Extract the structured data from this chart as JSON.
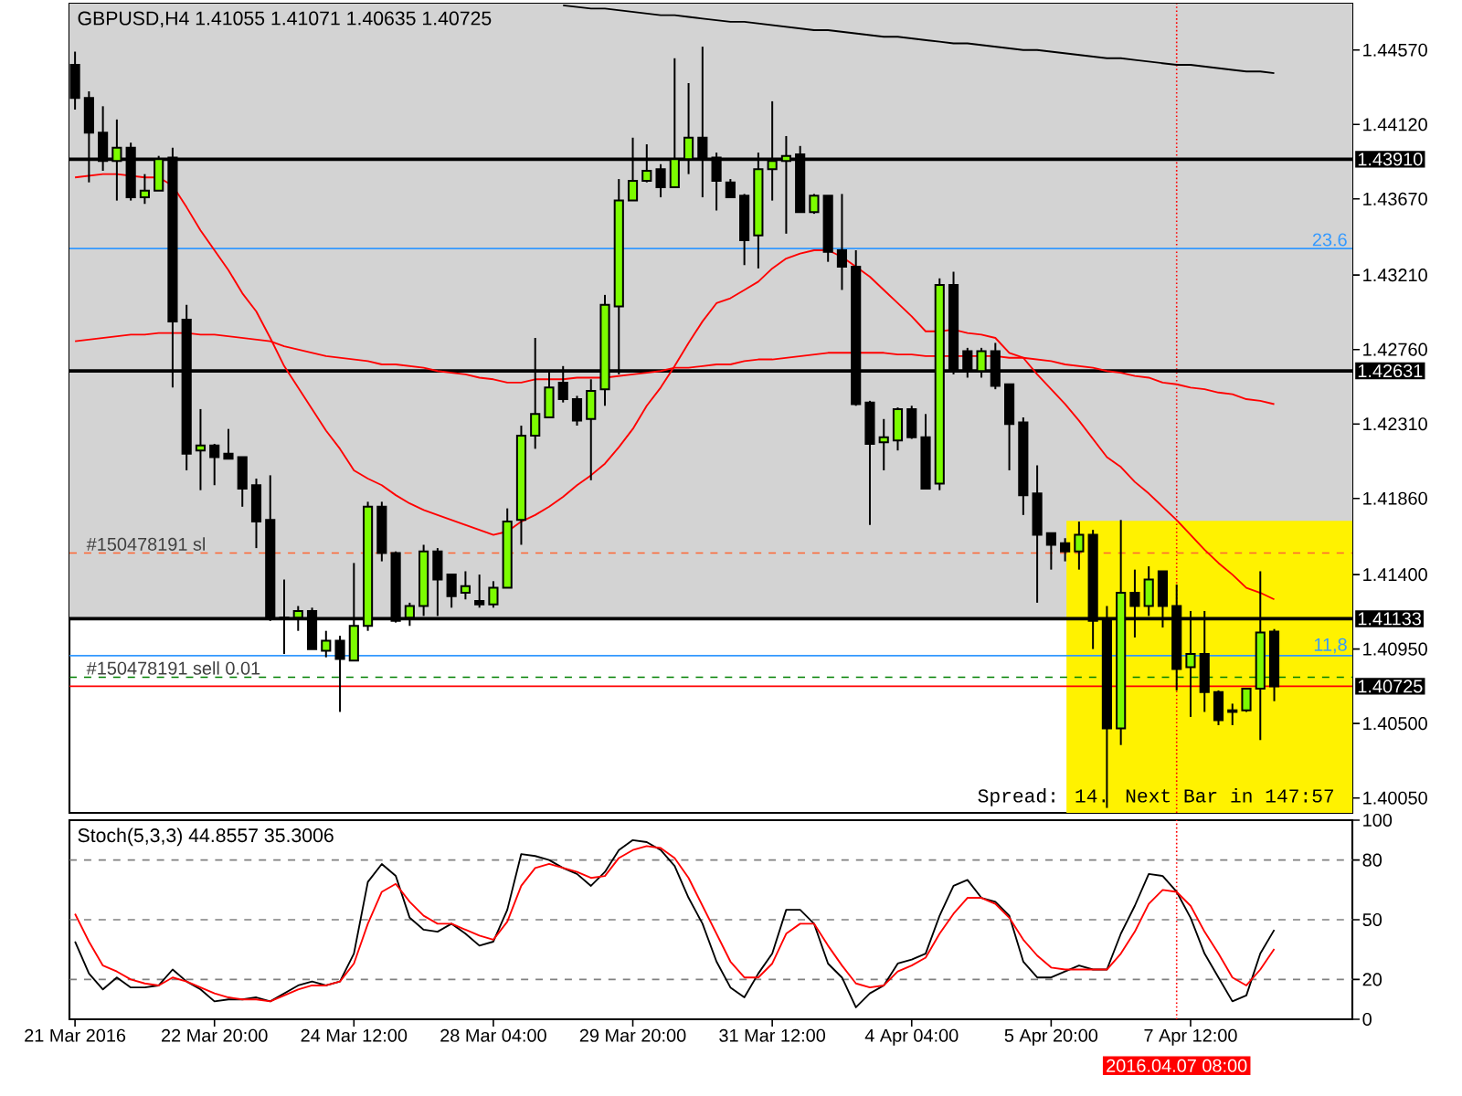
{
  "chart_data": [
    {
      "type": "candlestick",
      "title": "GBPUSD,H4 1.41055 1.41071 1.40635 1.40725",
      "tick_labels": "y",
      "ohlc": [
        [
          1.4448,
          1.4456,
          1.4421,
          1.4428
        ],
        [
          1.4428,
          1.4432,
          1.4377,
          1.4407
        ],
        [
          1.4407,
          1.4423,
          1.4384,
          1.439
        ],
        [
          1.439,
          1.4415,
          1.4366,
          1.4398
        ],
        [
          1.4398,
          1.4401,
          1.4366,
          1.4368
        ],
        [
          1.4368,
          1.4382,
          1.4364,
          1.4372
        ],
        [
          1.4372,
          1.4393,
          1.4372,
          1.4391
        ],
        [
          1.4392,
          1.4398,
          1.4253,
          1.4293
        ],
        [
          1.4294,
          1.4303,
          1.4203,
          1.4213
        ],
        [
          1.4215,
          1.424,
          1.4191,
          1.4218
        ],
        [
          1.4218,
          1.4219,
          1.4194,
          1.4211
        ],
        [
          1.4213,
          1.4228,
          1.421,
          1.421
        ],
        [
          1.4211,
          1.4211,
          1.4181,
          1.4192
        ],
        [
          1.4194,
          1.4198,
          1.4156,
          1.4172
        ],
        [
          1.4173,
          1.42,
          1.4112,
          1.4114
        ],
        [
          1.4114,
          1.4137,
          1.4092,
          1.4113
        ],
        [
          1.4114,
          1.4121,
          1.4106,
          1.4118
        ],
        [
          1.4118,
          1.412,
          1.4095,
          1.4095
        ],
        [
          1.4094,
          1.4106,
          1.409,
          1.41
        ],
        [
          1.41,
          1.4103,
          1.4057,
          1.4089
        ],
        [
          1.4088,
          1.4147,
          1.4088,
          1.4109
        ],
        [
          1.4109,
          1.4184,
          1.4106,
          1.4181
        ],
        [
          1.4181,
          1.4184,
          1.4148,
          1.4153
        ],
        [
          1.4153,
          1.4154,
          1.4111,
          1.4112
        ],
        [
          1.4114,
          1.4123,
          1.4109,
          1.4121
        ],
        [
          1.4121,
          1.4158,
          1.4115,
          1.4154
        ],
        [
          1.4154,
          1.4156,
          1.4115,
          1.4137
        ],
        [
          1.414,
          1.414,
          1.412,
          1.4127
        ],
        [
          1.4129,
          1.4142,
          1.4125,
          1.4133
        ],
        [
          1.4124,
          1.414,
          1.412,
          1.4122
        ],
        [
          1.4122,
          1.4136,
          1.412,
          1.4132
        ],
        [
          1.4132,
          1.418,
          1.4132,
          1.4172
        ],
        [
          1.4173,
          1.423,
          1.4158,
          1.4224
        ],
        [
          1.4224,
          1.4283,
          1.4216,
          1.4237
        ],
        [
          1.4235,
          1.4263,
          1.4235,
          1.4253
        ],
        [
          1.4256,
          1.4266,
          1.4244,
          1.4246
        ],
        [
          1.4246,
          1.4248,
          1.423,
          1.4233
        ],
        [
          1.4234,
          1.4258,
          1.4197,
          1.4251
        ],
        [
          1.4252,
          1.4309,
          1.4242,
          1.4303
        ],
        [
          1.4302,
          1.4379,
          1.4261,
          1.4366
        ],
        [
          1.4366,
          1.4404,
          1.4366,
          1.4378
        ],
        [
          1.4378,
          1.44,
          1.4377,
          1.4384
        ],
        [
          1.4385,
          1.4388,
          1.4368,
          1.4374
        ],
        [
          1.4374,
          1.4452,
          1.4374,
          1.4391
        ],
        [
          1.4391,
          1.4437,
          1.4382,
          1.4404
        ],
        [
          1.4404,
          1.4459,
          1.4368,
          1.4392
        ],
        [
          1.4392,
          1.4395,
          1.436,
          1.4378
        ],
        [
          1.4377,
          1.4379,
          1.4368,
          1.4368
        ],
        [
          1.4369,
          1.437,
          1.4327,
          1.4342
        ],
        [
          1.4345,
          1.4395,
          1.4325,
          1.4385
        ],
        [
          1.4385,
          1.4426,
          1.4366,
          1.439
        ],
        [
          1.439,
          1.4405,
          1.4346,
          1.4393
        ],
        [
          1.4394,
          1.4399,
          1.4359,
          1.4359
        ],
        [
          1.4359,
          1.437,
          1.4358,
          1.4369
        ],
        [
          1.4369,
          1.4369,
          1.4329,
          1.4335
        ],
        [
          1.4336,
          1.437,
          1.4312,
          1.4326
        ],
        [
          1.4326,
          1.4336,
          1.4242,
          1.4243
        ],
        [
          1.4244,
          1.4245,
          1.417,
          1.4219
        ],
        [
          1.422,
          1.4234,
          1.4203,
          1.4223
        ],
        [
          1.4221,
          1.4241,
          1.4215,
          1.424
        ],
        [
          1.424,
          1.4242,
          1.4222,
          1.4223
        ],
        [
          1.4223,
          1.4237,
          1.4192,
          1.4192
        ],
        [
          1.4195,
          1.4319,
          1.4191,
          1.4315
        ],
        [
          1.4315,
          1.4323,
          1.4261,
          1.4263
        ],
        [
          1.4275,
          1.4277,
          1.4259,
          1.4263
        ],
        [
          1.4263,
          1.4277,
          1.4259,
          1.4275
        ],
        [
          1.4275,
          1.428,
          1.4252,
          1.4254
        ],
        [
          1.4255,
          1.4255,
          1.4203,
          1.4231
        ],
        [
          1.4232,
          1.4235,
          1.4176,
          1.4188
        ],
        [
          1.4189,
          1.4206,
          1.4123,
          1.4164
        ],
        [
          1.4165,
          1.4165,
          1.4143,
          1.4158
        ],
        [
          1.4159,
          1.4162,
          1.4148,
          1.4154
        ],
        [
          1.4154,
          1.4172,
          1.4143,
          1.4164
        ],
        [
          1.4164,
          1.4167,
          1.4095,
          1.4112
        ],
        [
          1.4112,
          1.4121,
          1.3999,
          1.4047
        ],
        [
          1.4047,
          1.4173,
          1.4037,
          1.4129
        ],
        [
          1.4129,
          1.4143,
          1.4102,
          1.4121
        ],
        [
          1.4121,
          1.4145,
          1.4115,
          1.4137
        ],
        [
          1.4142,
          1.4142,
          1.4108,
          1.4121
        ],
        [
          1.4121,
          1.4134,
          1.407,
          1.4083
        ],
        [
          1.4084,
          1.4118,
          1.4054,
          1.4092
        ],
        [
          1.4092,
          1.4118,
          1.4057,
          1.4069
        ],
        [
          1.4069,
          1.407,
          1.4049,
          1.4052
        ],
        [
          1.4058,
          1.4062,
          1.4049,
          1.4057
        ],
        [
          1.4058,
          1.4071,
          1.4057,
          1.4071
        ],
        [
          1.4071,
          1.4142,
          1.404,
          1.4105
        ],
        [
          1.41055,
          1.41071,
          1.40635,
          1.40725
        ]
      ],
      "colors": [
        "#000000",
        "#000000",
        "#000000",
        "#7cfc00",
        "#000000",
        "#7cfc00",
        "#7cfc00",
        "#000000",
        "#000000",
        "#7cfc00",
        "#000000",
        "#000000",
        "#000000",
        "#000000",
        "#000000",
        "#000000",
        "#7cfc00",
        "#000000",
        "#7cfc00",
        "#000000",
        "#7cfc00",
        "#7cfc00",
        "#000000",
        "#000000",
        "#7cfc00",
        "#7cfc00",
        "#000000",
        "#000000",
        "#7cfc00",
        "#000000",
        "#7cfc00",
        "#7cfc00",
        "#7cfc00",
        "#7cfc00",
        "#7cfc00",
        "#000000",
        "#000000",
        "#7cfc00",
        "#7cfc00",
        "#7cfc00",
        "#7cfc00",
        "#7cfc00",
        "#000000",
        "#7cfc00",
        "#7cfc00",
        "#000000",
        "#000000",
        "#000000",
        "#000000",
        "#7cfc00",
        "#7cfc00",
        "#7cfc00",
        "#000000",
        "#7cfc00",
        "#000000",
        "#000000",
        "#000000",
        "#000000",
        "#7cfc00",
        "#7cfc00",
        "#000000",
        "#000000",
        "#7cfc00",
        "#000000",
        "#000000",
        "#7cfc00",
        "#000000",
        "#000000",
        "#000000",
        "#000000",
        "#000000",
        "#000000",
        "#7cfc00",
        "#000000",
        "#000000",
        "#7cfc00",
        "#000000",
        "#7cfc00",
        "#000000",
        "#000000",
        "#7cfc00",
        "#000000",
        "#000000",
        "#000000",
        "#7cfc00",
        "#7cfc00",
        "#000000"
      ],
      "series": [
        {
          "type": "line",
          "color": "#ff0000",
          "values": [
            1.438,
            1.4381,
            1.4382,
            1.4382,
            1.4381,
            1.438,
            1.438,
            1.4375,
            1.4362,
            1.4348,
            1.4336,
            1.4324,
            1.431,
            1.4299,
            1.4283,
            1.4266,
            1.4253,
            1.424,
            1.4227,
            1.4216,
            1.4203,
            1.4198,
            1.4194,
            1.4188,
            1.4183,
            1.4179,
            1.4176,
            1.4173,
            1.417,
            1.4167,
            1.4164,
            1.4166,
            1.4172,
            1.4176,
            1.4181,
            1.4187,
            1.4194,
            1.42,
            1.4207,
            1.4217,
            1.4228,
            1.4242,
            1.4253,
            1.4266,
            1.428,
            1.4293,
            1.4304,
            1.4307,
            1.4312,
            1.4317,
            1.4325,
            1.4331,
            1.4334,
            1.4336,
            1.4336,
            1.4332,
            1.4326,
            1.432,
            1.4312,
            1.4304,
            1.4296,
            1.4287,
            1.4287,
            1.4288,
            1.4286,
            1.4285,
            1.4283,
            1.4274,
            1.4271,
            1.4261,
            1.4252,
            1.4243,
            1.4233,
            1.4222,
            1.4211,
            1.4205,
            1.4196,
            1.4189,
            1.4181,
            1.4173,
            1.4164,
            1.4155,
            1.4147,
            1.414,
            1.4132,
            1.4129,
            1.4125
          ]
        },
        {
          "type": "line",
          "color": "#ff0000",
          "values": [
            1.4281,
            1.4282,
            1.4283,
            1.4284,
            1.4285,
            1.4285,
            1.4286,
            1.4286,
            1.4286,
            1.4285,
            1.4285,
            1.4284,
            1.4283,
            1.4282,
            1.4281,
            1.4278,
            1.4276,
            1.4274,
            1.4272,
            1.4271,
            1.427,
            1.4269,
            1.4267,
            1.4267,
            1.4266,
            1.4265,
            1.4263,
            1.4262,
            1.4261,
            1.4259,
            1.4258,
            1.4256,
            1.4256,
            1.4258,
            1.4258,
            1.4258,
            1.4259,
            1.4259,
            1.4259,
            1.426,
            1.4261,
            1.4262,
            1.4263,
            1.4265,
            1.4265,
            1.4266,
            1.4267,
            1.4267,
            1.4269,
            1.427,
            1.427,
            1.4271,
            1.4272,
            1.4273,
            1.4274,
            1.4274,
            1.4274,
            1.4274,
            1.4274,
            1.4273,
            1.4273,
            1.4272,
            1.4272,
            1.4272,
            1.4272,
            1.4272,
            1.4272,
            1.4271,
            1.4271,
            1.427,
            1.4269,
            1.4267,
            1.4266,
            1.4265,
            1.4263,
            1.4262,
            1.426,
            1.4259,
            1.4256,
            1.4255,
            1.4253,
            1.4252,
            1.425,
            1.4249,
            1.4246,
            1.4245,
            1.4243
          ]
        },
        {
          "type": "line",
          "color": "#000000",
          "values": [
            null,
            null,
            null,
            null,
            null,
            null,
            null,
            null,
            null,
            null,
            null,
            null,
            null,
            null,
            null,
            null,
            null,
            null,
            null,
            null,
            null,
            null,
            null,
            null,
            null,
            null,
            null,
            null,
            null,
            null,
            null,
            null,
            null,
            null,
            null,
            1.4484,
            1.4483,
            1.4482,
            1.4482,
            1.4481,
            1.448,
            1.4479,
            1.4478,
            1.4478,
            1.4477,
            1.4476,
            1.4475,
            1.4474,
            1.4474,
            1.4473,
            1.4472,
            1.4471,
            1.447,
            1.4469,
            1.4469,
            1.4468,
            1.4467,
            1.4466,
            1.4465,
            1.4465,
            1.4464,
            1.4463,
            1.4462,
            1.4461,
            1.4461,
            1.446,
            1.4459,
            1.4458,
            1.4457,
            1.4457,
            1.4456,
            1.4455,
            1.4454,
            1.4453,
            1.4452,
            1.4452,
            1.4451,
            1.445,
            1.4449,
            1.4448,
            1.4448,
            1.4447,
            1.4446,
            1.4445,
            1.4444,
            1.4444,
            1.4443
          ]
        }
      ],
      "ylim": [
        1.3996,
        1.4485
      ],
      "yticks": [
        {
          "value": 1.4005,
          "label": "1.40050"
        },
        {
          "value": 1.405,
          "label": "1.40500"
        },
        {
          "value": 1.4095,
          "label": "1.40950"
        },
        {
          "value": 1.414,
          "label": "1.41400"
        },
        {
          "value": 1.4186,
          "label": "1.41860"
        },
        {
          "value": 1.4231,
          "label": "1.42310"
        },
        {
          "value": 1.4276,
          "label": "1.42760"
        },
        {
          "value": 1.4321,
          "label": "1.43210"
        },
        {
          "value": 1.4367,
          "label": "1.43670"
        },
        {
          "value": 1.4412,
          "label": "1.44120"
        },
        {
          "value": 1.4457,
          "label": "1.44570"
        }
      ],
      "bands": [
        {
          "axis": "y",
          "from": 1.41133,
          "to": 1.4485,
          "color": "#d3d3d3"
        }
      ],
      "ref_lines": [
        {
          "axis": "y",
          "value": 1.4391,
          "label": "1.43910",
          "color": "#000000",
          "line_style": "solid"
        },
        {
          "axis": "y",
          "value": 1.42631,
          "label": "1.42631",
          "color": "#000000",
          "line_style": "solid"
        },
        {
          "axis": "y",
          "value": 1.41133,
          "label": "1.41133",
          "color": "#000000",
          "line_style": "solid"
        },
        {
          "axis": "y",
          "value": 1.40725,
          "label": "1.40725",
          "color": "#ff0000",
          "line_style": "solid"
        },
        {
          "axis": "y",
          "value": 1.4337,
          "color": "#3399ff",
          "line_style": "solid"
        },
        {
          "axis": "y",
          "value": 1.4091,
          "color": "#3399ff",
          "line_style": "solid"
        },
        {
          "axis": "y",
          "value": 1.4153,
          "label": "#150478191 sl",
          "color": "#ff6633",
          "line_style": "dashed"
        },
        {
          "axis": "y",
          "value": 1.4078,
          "label": "#150478191 sell 0.01",
          "color": "#008000",
          "line_style": "dashed"
        }
      ],
      "annotations": [
        "Spread: 14. Next Bar in 147:57",
        {
          "text": "23.6",
          "y": 1.4337
        },
        {
          "text": "11,8",
          "y": 1.4091
        }
      ]
    },
    {
      "type": "line",
      "title": "Stoch(5,3,3) 44.8557 35.3006",
      "categories": [
        "21 Mar 2016",
        null,
        null,
        null,
        null,
        null,
        null,
        null,
        null,
        null,
        "22 Mar 20:00",
        null,
        null,
        null,
        null,
        null,
        null,
        null,
        null,
        null,
        "24 Mar 12:00",
        null,
        null,
        null,
        null,
        null,
        null,
        null,
        null,
        null,
        "28 Mar 04:00",
        null,
        null,
        null,
        null,
        null,
        null,
        null,
        null,
        null,
        "29 Mar 20:00",
        null,
        null,
        null,
        null,
        null,
        null,
        null,
        null,
        null,
        "31 Mar 12:00",
        null,
        null,
        null,
        null,
        null,
        null,
        null,
        null,
        null,
        "4 Apr 04:00",
        null,
        null,
        null,
        null,
        null,
        null,
        null,
        null,
        null,
        "5 Apr 20:00",
        null,
        null,
        null,
        null,
        null,
        null,
        null,
        null,
        null,
        "7 Apr 12:00",
        null,
        null,
        null,
        null,
        null,
        null
      ],
      "series": [
        {
          "color": "#000000",
          "values": [
            39,
            23,
            15,
            21,
            16,
            16,
            17,
            25,
            19,
            15,
            9,
            10,
            10,
            11,
            9,
            13,
            17,
            19,
            17,
            19,
            33,
            69,
            78,
            72,
            51,
            45,
            44,
            48,
            43,
            37,
            39,
            55,
            83,
            82,
            80,
            76,
            73,
            67,
            74,
            85,
            90,
            89,
            85,
            77,
            61,
            48,
            29,
            16,
            11,
            23,
            33,
            55,
            55,
            48,
            28,
            21,
            6,
            13,
            17,
            28,
            30,
            33,
            52,
            67,
            70,
            61,
            59,
            52,
            29,
            21,
            21,
            24,
            27,
            25,
            25,
            43,
            57,
            73,
            72,
            64,
            51,
            33,
            21,
            9,
            12,
            33,
            44.9
          ]
        },
        {
          "color": "#ff0000",
          "values": [
            53,
            39,
            27,
            24,
            20,
            18,
            17,
            21,
            19,
            16,
            13,
            11,
            10,
            10,
            9,
            12,
            15,
            17,
            17,
            19,
            28,
            48,
            64,
            68,
            59,
            52,
            48,
            48,
            45,
            42,
            40,
            49,
            67,
            76,
            78,
            76,
            74,
            71,
            72,
            81,
            85,
            87,
            86,
            81,
            71,
            57,
            43,
            29,
            21,
            21,
            28,
            43,
            48,
            48,
            37,
            27,
            18,
            16,
            17,
            24,
            27,
            31,
            43,
            53,
            61,
            61,
            58,
            51,
            40,
            32,
            26,
            25,
            25,
            25,
            25,
            33,
            44,
            58,
            65,
            64,
            57,
            44,
            33,
            21,
            17,
            25,
            35.3
          ]
        }
      ],
      "ylim": [
        0,
        100
      ],
      "yticks": [
        0,
        20,
        50,
        80,
        100
      ],
      "ref_lines": [
        {
          "axis": "y",
          "value": 20,
          "color": "#808080",
          "line_style": "dashed"
        },
        {
          "axis": "y",
          "value": 50,
          "color": "#808080",
          "line_style": "dashed"
        },
        {
          "axis": "y",
          "value": 80,
          "color": "#808080",
          "line_style": "dashed"
        }
      ],
      "annotations": [
        "2016.04.07 08:00"
      ]
    }
  ]
}
